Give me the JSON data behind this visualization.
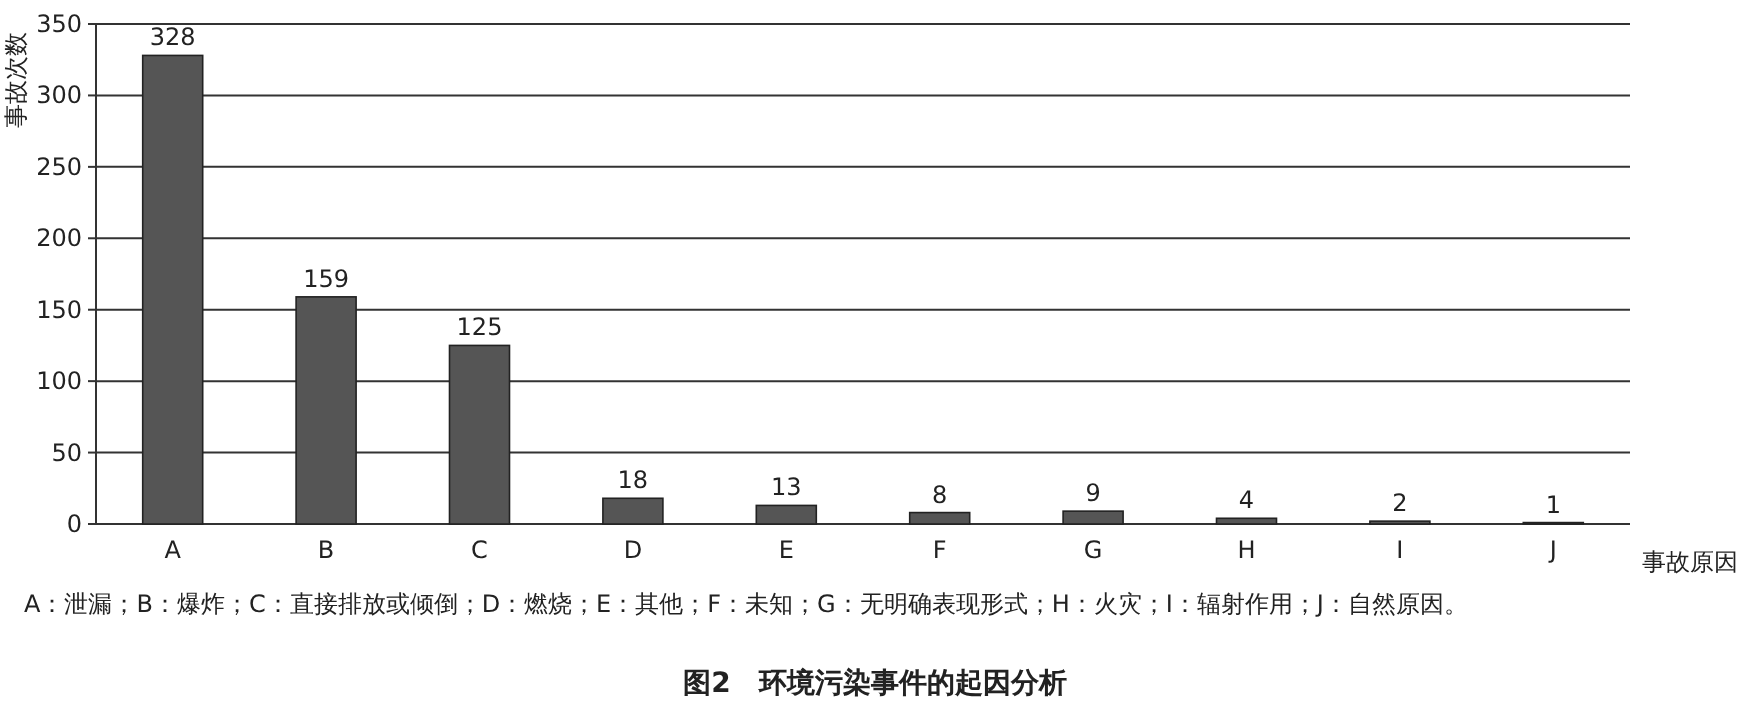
{
  "chart_data": {
    "type": "bar",
    "title": "图2　环境污染事件的起因分析",
    "xlabel": "事故原因",
    "ylabel": "事故次数",
    "categories": [
      "A",
      "B",
      "C",
      "D",
      "E",
      "F",
      "G",
      "H",
      "I",
      "J"
    ],
    "values": [
      328,
      159,
      125,
      18,
      13,
      8,
      9,
      4,
      2,
      1
    ],
    "color": "#555555",
    "ylim": [
      0,
      350
    ],
    "yticks": [
      0,
      50,
      100,
      150,
      200,
      250,
      300,
      350
    ],
    "grid": "y",
    "data_labels": true,
    "annotations": [
      "A：泄漏；B：爆炸；C：直接排放或倾倒；D：燃烧；E：其他；F：未知；G：无明确表现形式；H：火灾；I：辐射作用；J：自然原因。"
    ]
  }
}
